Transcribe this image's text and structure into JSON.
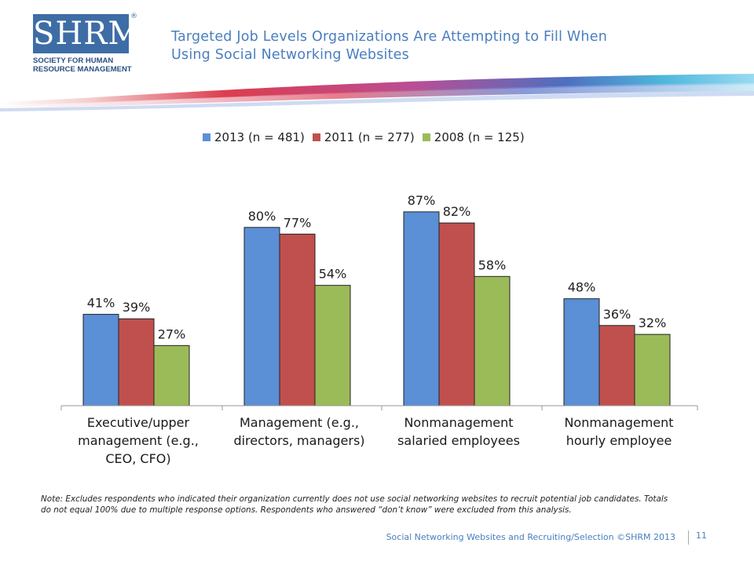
{
  "logo": {
    "mark": "SHRM",
    "registered": "®",
    "line1": "SOCIETY FOR HUMAN",
    "line2": "RESOURCE MANAGEMENT",
    "color": "#3e6da6"
  },
  "title": {
    "line1": "Targeted Job Levels Organizations  Are Attempting to Fill When",
    "line2": "Using Social Networking Websites"
  },
  "chart_data": {
    "type": "bar",
    "categories": [
      [
        "Executive/upper",
        "management (e.g.,",
        "CEO, CFO)"
      ],
      [
        "Management (e.g.,",
        "directors, managers)"
      ],
      [
        "Nonmanagement",
        "salaried employees"
      ],
      [
        "Nonmanagement",
        "hourly employee"
      ]
    ],
    "series": [
      {
        "name": "2013 (n = 481)",
        "color": "#5b8fd6",
        "values": [
          41,
          80,
          87,
          48
        ],
        "labels": [
          "41%",
          "80%",
          "87%",
          "48%"
        ]
      },
      {
        "name": "2011 (n = 277)",
        "color": "#c0504d",
        "values": [
          39,
          77,
          82,
          36
        ],
        "labels": [
          "39%",
          "77%",
          "82%",
          "36%"
        ]
      },
      {
        "name": "2008 (n = 125)",
        "color": "#9bbb59",
        "values": [
          27,
          54,
          58,
          32
        ],
        "labels": [
          "27%",
          "54%",
          "58%",
          "32%"
        ]
      }
    ],
    "ylim": [
      0,
      100
    ],
    "legend": "top",
    "grid": false
  },
  "note": "Note:  Excludes respondents who indicated their organization currently does not use social networking websites to recruit potential job candidates.  Totals do not equal 100% due to multiple response options. Respondents who answered “don’t know” were excluded  from this analysis.",
  "footer": {
    "source": "Social Networking Websites and Recruiting/Selection ©SHRM 2013",
    "page": "11"
  }
}
